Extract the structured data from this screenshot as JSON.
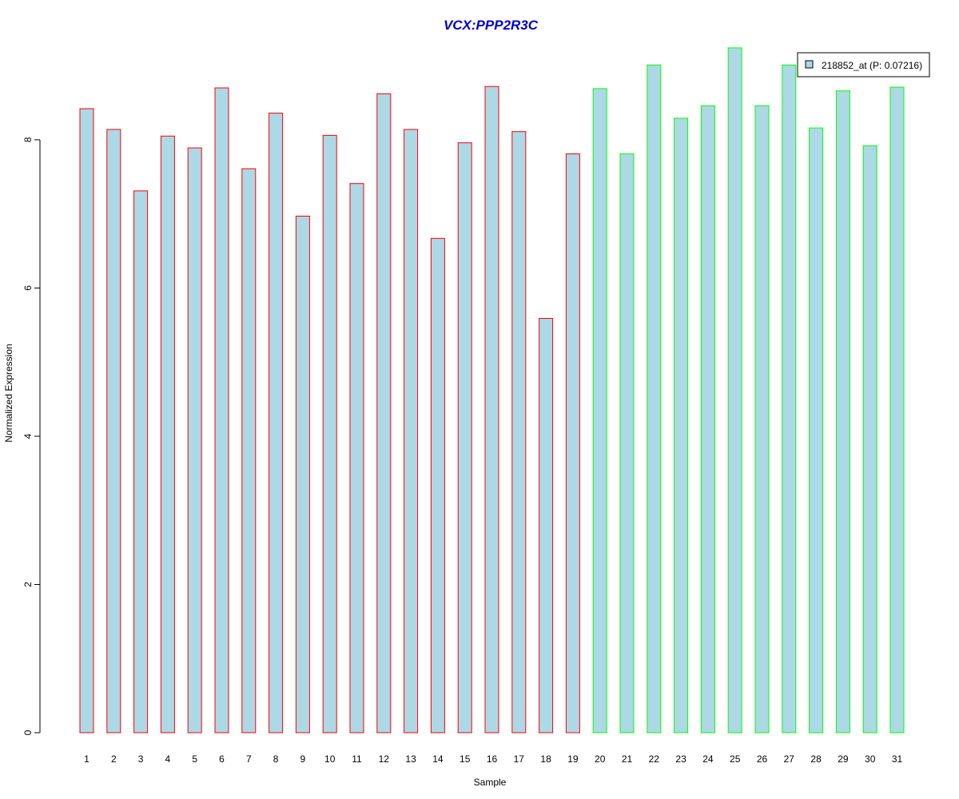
{
  "chart_data": {
    "type": "bar",
    "title": "VCX:PPP2R3C",
    "title_color": "#0000CC",
    "xlabel": "Sample",
    "ylabel": "Normalized Expression",
    "ylim": [
      0,
      9.25
    ],
    "yticks": [
      0,
      2,
      4,
      6,
      8
    ],
    "grid": false,
    "legend_position": "top-right",
    "categories": [
      "1",
      "2",
      "3",
      "4",
      "5",
      "6",
      "7",
      "8",
      "9",
      "10",
      "11",
      "12",
      "13",
      "14",
      "15",
      "16",
      "17",
      "18",
      "19",
      "20",
      "21",
      "22",
      "23",
      "24",
      "25",
      "26",
      "27",
      "28",
      "29",
      "30",
      "31"
    ],
    "series": [
      {
        "name": "218852_at (P: 0.07216)",
        "fill": "#ADD8E6",
        "values": [
          8.42,
          8.14,
          7.31,
          8.05,
          7.89,
          8.7,
          7.61,
          8.36,
          6.97,
          8.06,
          7.41,
          8.62,
          8.14,
          6.67,
          7.96,
          8.72,
          8.11,
          5.59,
          7.81,
          8.69,
          7.81,
          9.01,
          8.29,
          8.46,
          9.24,
          8.46,
          9.01,
          8.16,
          8.66,
          7.92,
          8.71
        ]
      }
    ],
    "bar_groups": [
      {
        "outline": "#FF0000",
        "from": 0,
        "to": 18
      },
      {
        "outline": "#00FF00",
        "from": 19,
        "to": 30
      }
    ]
  }
}
